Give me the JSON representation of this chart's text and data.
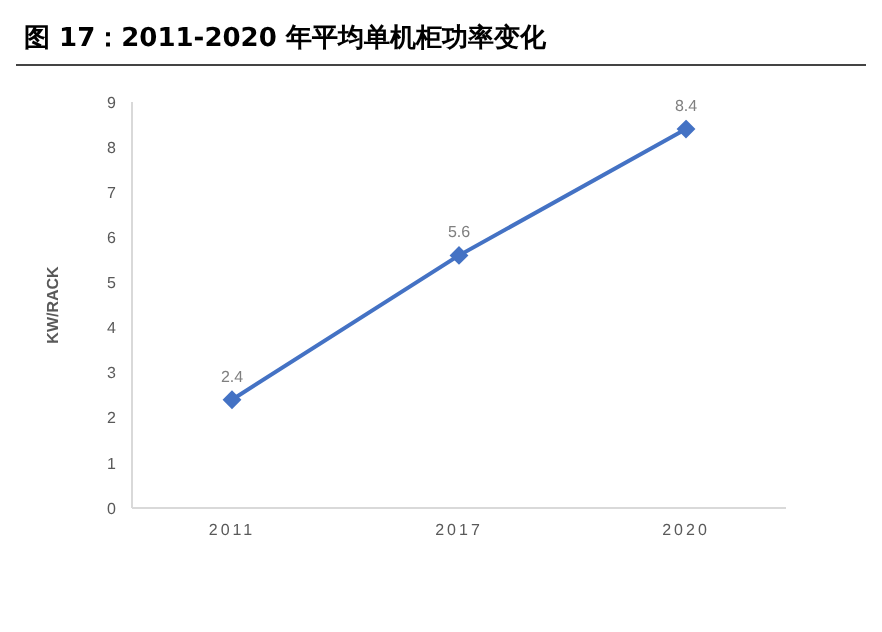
{
  "chart_data": {
    "type": "line",
    "title": "图 17：2011-2020 年平均单机柜功率变化",
    "categories": [
      "2011",
      "2017",
      "2020"
    ],
    "series": [
      {
        "color": "#4472c4",
        "values": [
          2.4,
          5.6,
          8.4
        ]
      }
    ],
    "ylabel": "KW/RACK",
    "ylim": [
      0,
      9
    ],
    "yticks": [
      0,
      1,
      2,
      3,
      4,
      5,
      6,
      7,
      8,
      9
    ],
    "grid": false,
    "legend": false,
    "marker": "diamond",
    "line_style": "solid",
    "data_labels": true
  }
}
